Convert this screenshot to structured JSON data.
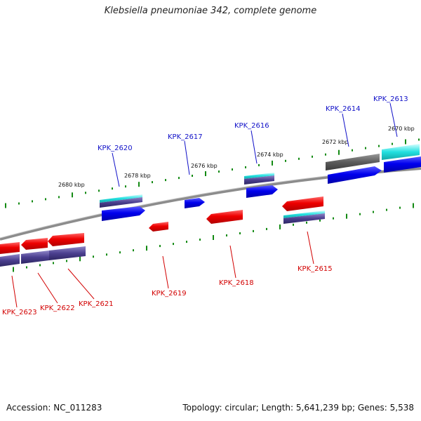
{
  "title": "Klebsiella pneumoniae 342, complete genome",
  "footer": {
    "accession": "Accession: NC_011283",
    "summary": "Topology: circular; Length: 5,641,239 bp; Genes: 5,538"
  },
  "colors": {
    "cds_forward": "#0000ee",
    "cds_reverse": "#ee0000",
    "rna_cyan": "#22e0e0",
    "feature_gray": "#666666",
    "feature_purple": "#4b3f8f",
    "tick_green": "#138a13",
    "backbone": "#8c8c8c",
    "label_forward": "#1010c8",
    "label_reverse": "#d20000"
  },
  "kbp_labels": [
    "2680 kbp",
    "2678 kbp",
    "2676 kbp",
    "2674 kbp",
    "2672 kbp",
    "2670 kbp"
  ],
  "genes_forward": [
    "KPK_2620",
    "KPK_2617",
    "KPK_2616",
    "KPK_2614",
    "KPK_2613"
  ],
  "genes_reverse": [
    "KPK_2623",
    "KPK_2622",
    "KPK_2621",
    "KPK_2619",
    "KPK_2618",
    "KPK_2615"
  ]
}
